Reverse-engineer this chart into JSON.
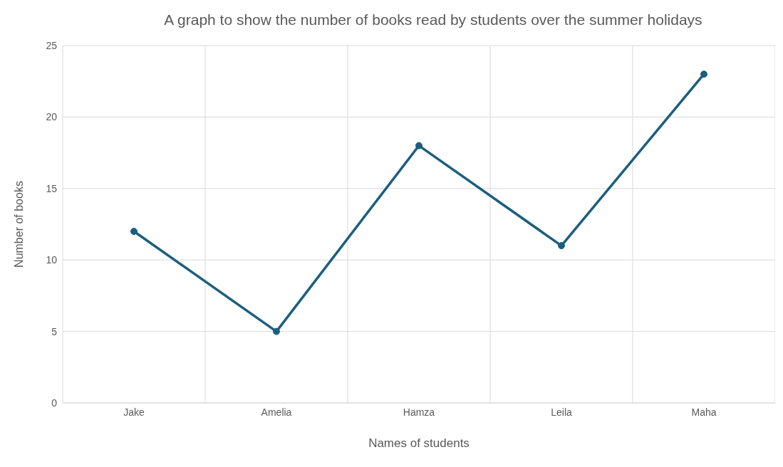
{
  "chart_data": {
    "type": "line",
    "title": "A graph to show the number of books read by students over the summer holidays",
    "xlabel": "Names of students",
    "ylabel": "Number of books",
    "categories": [
      "Jake",
      "Amelia",
      "Hamza",
      "Leila",
      "Maha"
    ],
    "series": [
      {
        "color": "#1b5e7e",
        "values": [
          12,
          5,
          18,
          11,
          23
        ]
      }
    ],
    "ylim": [
      0,
      25
    ],
    "yticks": [
      0,
      5,
      10,
      15,
      20,
      25
    ],
    "grid": true,
    "legend": false,
    "marker": "circle",
    "line_style": "solid"
  }
}
